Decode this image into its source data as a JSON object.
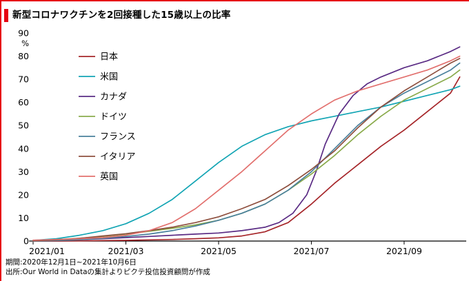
{
  "title": "新型コロナワクチンを2回接種した15歳以上の比率",
  "accent_color": "#e60012",
  "footer": {
    "line1": "期間:2020年12月1日~2021年10月6日",
    "line2": "出所:Our World in Dataの集計よりピクテ投信投資顧問が作成"
  },
  "chart_data": {
    "type": "line",
    "title": "新型コロナワクチンを2回接種した15歳以上の比率",
    "unit_label": "%",
    "ylim": [
      0,
      90
    ],
    "yticks": [
      0,
      10,
      20,
      30,
      40,
      50,
      60,
      70,
      80,
      90
    ],
    "xlim": [
      0,
      9.25
    ],
    "xticks": [
      {
        "pos": 0,
        "label": "2021/01"
      },
      {
        "pos": 2,
        "label": "2021/03"
      },
      {
        "pos": 4,
        "label": "2021/05"
      },
      {
        "pos": 6,
        "label": "2021/07"
      },
      {
        "pos": 8,
        "label": "2021/09"
      }
    ],
    "legend_position": "upper-left-inside",
    "grid": false,
    "series": [
      {
        "name": "日本",
        "color": "#a6262a",
        "points": [
          [
            0,
            0
          ],
          [
            0.5,
            0
          ],
          [
            1,
            0.1
          ],
          [
            1.5,
            0.2
          ],
          [
            2,
            0.3
          ],
          [
            2.5,
            0.5
          ],
          [
            3,
            0.7
          ],
          [
            3.5,
            1.0
          ],
          [
            4,
            1.4
          ],
          [
            4.5,
            2.2
          ],
          [
            5,
            4
          ],
          [
            5.5,
            8
          ],
          [
            6,
            16
          ],
          [
            6.5,
            25
          ],
          [
            7,
            33
          ],
          [
            7.5,
            41
          ],
          [
            8,
            48
          ],
          [
            8.5,
            56
          ],
          [
            9,
            64
          ],
          [
            9.2,
            71
          ]
        ]
      },
      {
        "name": "米国",
        "color": "#13a5b4",
        "points": [
          [
            0,
            0.3
          ],
          [
            0.5,
            1
          ],
          [
            1,
            2.5
          ],
          [
            1.5,
            4.5
          ],
          [
            2,
            7.5
          ],
          [
            2.5,
            12
          ],
          [
            3,
            18
          ],
          [
            3.5,
            26
          ],
          [
            4,
            34
          ],
          [
            4.5,
            41
          ],
          [
            5,
            46
          ],
          [
            5.5,
            49.5
          ],
          [
            6,
            52
          ],
          [
            6.5,
            54
          ],
          [
            7,
            56
          ],
          [
            7.5,
            58
          ],
          [
            8,
            60.5
          ],
          [
            8.5,
            63
          ],
          [
            9,
            65.5
          ],
          [
            9.2,
            67
          ]
        ]
      },
      {
        "name": "カナダ",
        "color": "#5a2b84",
        "points": [
          [
            0,
            0.1
          ],
          [
            0.5,
            0.3
          ],
          [
            1,
            0.6
          ],
          [
            1.5,
            1
          ],
          [
            2,
            1.5
          ],
          [
            2.5,
            2
          ],
          [
            3,
            2.5
          ],
          [
            3.5,
            3
          ],
          [
            4,
            3.5
          ],
          [
            4.5,
            4.5
          ],
          [
            5,
            6
          ],
          [
            5.3,
            8
          ],
          [
            5.6,
            12
          ],
          [
            5.9,
            20
          ],
          [
            6.1,
            30
          ],
          [
            6.3,
            42
          ],
          [
            6.6,
            55
          ],
          [
            6.9,
            63
          ],
          [
            7.2,
            68
          ],
          [
            7.5,
            71
          ],
          [
            8,
            75
          ],
          [
            8.5,
            78
          ],
          [
            9,
            82
          ],
          [
            9.2,
            84
          ]
        ]
      },
      {
        "name": "ドイツ",
        "color": "#8aab4c",
        "points": [
          [
            0,
            0.2
          ],
          [
            0.5,
            0.6
          ],
          [
            1,
            1.2
          ],
          [
            1.5,
            2
          ],
          [
            2,
            3
          ],
          [
            2.5,
            4.2
          ],
          [
            3,
            5.5
          ],
          [
            3.5,
            7
          ],
          [
            4,
            9
          ],
          [
            4.5,
            12
          ],
          [
            5,
            16
          ],
          [
            5.5,
            22
          ],
          [
            6,
            29
          ],
          [
            6.5,
            37
          ],
          [
            7,
            46
          ],
          [
            7.5,
            54
          ],
          [
            8,
            61
          ],
          [
            8.5,
            66
          ],
          [
            9,
            71
          ],
          [
            9.2,
            74
          ]
        ]
      },
      {
        "name": "フランス",
        "color": "#49809c",
        "points": [
          [
            0,
            0
          ],
          [
            0.5,
            0.2
          ],
          [
            1,
            0.6
          ],
          [
            1.5,
            1.2
          ],
          [
            2,
            2
          ],
          [
            2.5,
            3
          ],
          [
            3,
            4.5
          ],
          [
            3.5,
            6.5
          ],
          [
            4,
            9
          ],
          [
            4.5,
            12
          ],
          [
            5,
            16
          ],
          [
            5.5,
            22
          ],
          [
            6,
            30
          ],
          [
            6.5,
            40
          ],
          [
            7,
            50
          ],
          [
            7.5,
            58
          ],
          [
            8,
            64
          ],
          [
            8.5,
            69
          ],
          [
            9,
            74
          ],
          [
            9.2,
            77
          ]
        ]
      },
      {
        "name": "イタリア",
        "color": "#8e4f3e",
        "points": [
          [
            0,
            0.1
          ],
          [
            0.5,
            0.5
          ],
          [
            1,
            1.2
          ],
          [
            1.5,
            2.2
          ],
          [
            2,
            3.2
          ],
          [
            2.5,
            4.5
          ],
          [
            3,
            6
          ],
          [
            3.5,
            8
          ],
          [
            4,
            10.5
          ],
          [
            4.5,
            14
          ],
          [
            5,
            18
          ],
          [
            5.5,
            24
          ],
          [
            6,
            31
          ],
          [
            6.5,
            39
          ],
          [
            7,
            49
          ],
          [
            7.5,
            58
          ],
          [
            8,
            65
          ],
          [
            8.5,
            71
          ],
          [
            9,
            77
          ],
          [
            9.2,
            79
          ]
        ]
      },
      {
        "name": "英国",
        "color": "#e2706e",
        "points": [
          [
            0,
            0.4
          ],
          [
            0.5,
            0.7
          ],
          [
            1,
            1
          ],
          [
            1.5,
            1.5
          ],
          [
            2,
            2.5
          ],
          [
            2.5,
            4.5
          ],
          [
            3,
            8
          ],
          [
            3.5,
            14
          ],
          [
            4,
            22
          ],
          [
            4.5,
            30
          ],
          [
            5,
            39
          ],
          [
            5.5,
            48
          ],
          [
            6,
            55
          ],
          [
            6.5,
            61
          ],
          [
            7,
            65
          ],
          [
            7.5,
            68
          ],
          [
            8,
            71
          ],
          [
            8.5,
            74
          ],
          [
            9,
            78
          ],
          [
            9.2,
            80
          ]
        ]
      }
    ]
  }
}
